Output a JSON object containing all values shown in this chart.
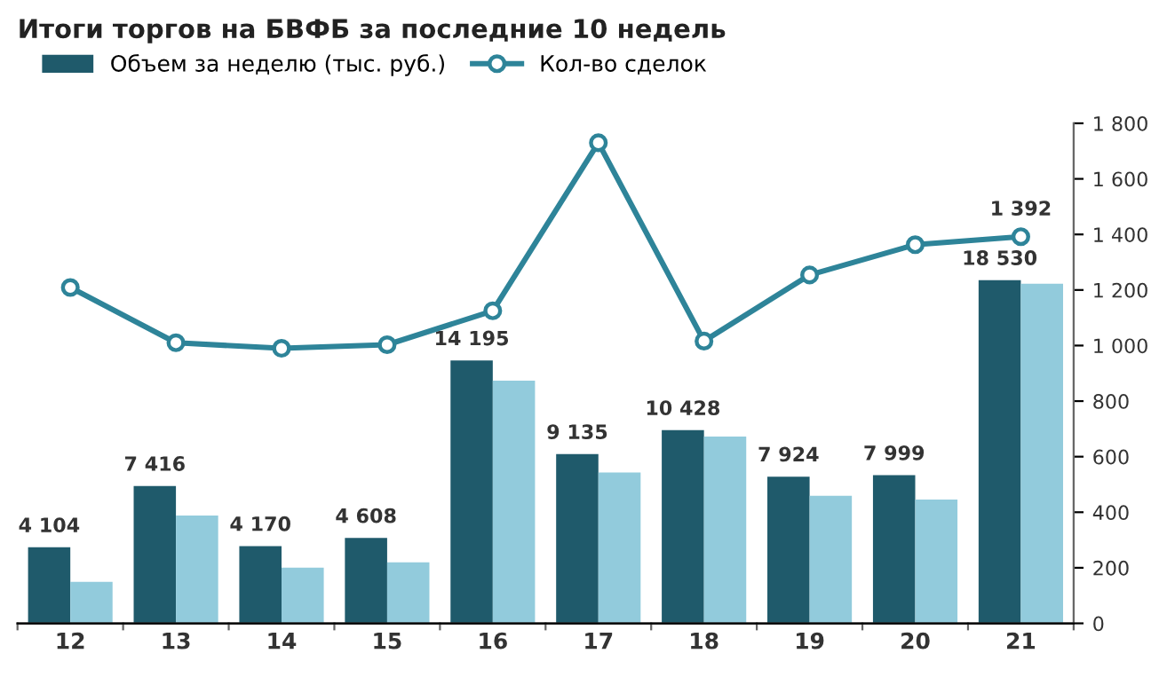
{
  "chart_data": {
    "type": "bar",
    "title": "Итоги торгов на БВФБ за последние 10 недель",
    "categories": [
      "12",
      "13",
      "14",
      "15",
      "16",
      "17",
      "18",
      "19",
      "20",
      "21"
    ],
    "ylim": [
      0,
      27000
    ],
    "series": [
      {
        "name": "Объем за неделю (тыс. руб.)",
        "color": "#1f5a6b",
        "values": [
          4104,
          7416,
          4170,
          4608,
          14195,
          9135,
          10428,
          7924,
          7999,
          18530
        ],
        "value_labels": [
          "4 104",
          "7 416",
          "4 170",
          "4 608",
          "14 195",
          "9 135",
          "10 428",
          "7 924",
          "7 999",
          "18 530"
        ]
      },
      {
        "color": "#92cbdc",
        "values": [
          2240,
          5820,
          3010,
          3300,
          13100,
          8150,
          10090,
          6890,
          6690,
          18340
        ]
      },
      {
        "name": "Кол-во сделок",
        "type": "line",
        "axis": "y2",
        "color": "#2e8499",
        "marker": "circle",
        "values": [
          1209,
          1010,
          990,
          1003,
          1125,
          1730,
          1016,
          1254,
          1363,
          1392
        ],
        "value_labels": [
          null,
          null,
          null,
          null,
          null,
          null,
          null,
          null,
          null,
          "1 392"
        ]
      }
    ],
    "y2lim": [
      0,
      1800
    ],
    "y2ticks": [
      {
        "value": 0,
        "label": "0"
      },
      {
        "value": 200,
        "label": "200"
      },
      {
        "value": 400,
        "label": "400"
      },
      {
        "value": 600,
        "label": "600"
      },
      {
        "value": 800,
        "label": "800"
      },
      {
        "value": 1000,
        "label": "1 000"
      },
      {
        "value": 1200,
        "label": "1 200"
      },
      {
        "value": 1400,
        "label": "1 400"
      },
      {
        "value": 1600,
        "label": "1 600"
      },
      {
        "value": 1800,
        "label": "1 800"
      }
    ],
    "grid": false,
    "legend": "top left"
  }
}
